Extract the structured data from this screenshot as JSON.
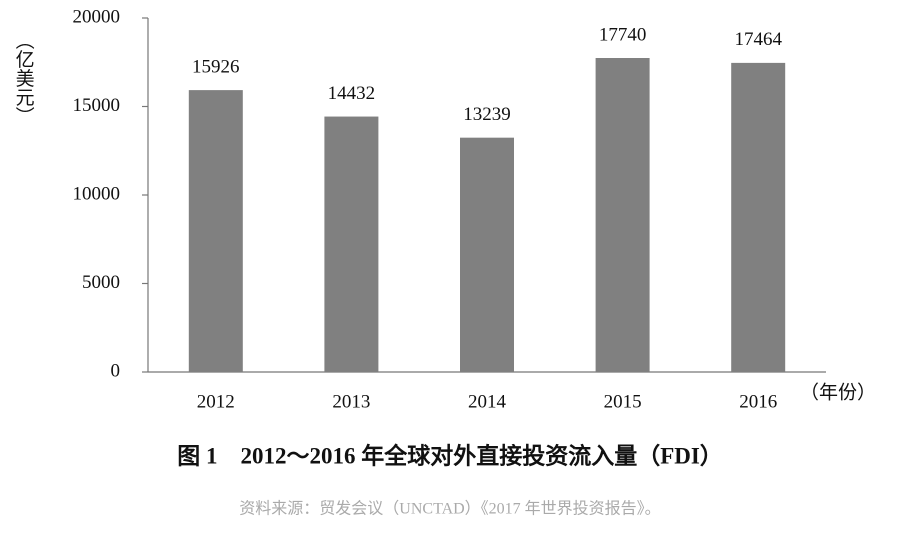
{
  "chart_data": {
    "type": "bar",
    "title": "图 1　2012～2016 年全球对外直接投资流入量（FDI）",
    "source": "资料来源：贸发会议（UNCTAD）《2017 年世界投资报告》。",
    "y_label": "（亿美元）",
    "x_label": "（年份）",
    "categories": [
      "2012",
      "2013",
      "2014",
      "2015",
      "2016"
    ],
    "values": [
      15926,
      14432,
      13239,
      17740,
      17464
    ],
    "color": "#808080",
    "ylim": [
      0,
      20000
    ],
    "yticks": [
      0,
      5000,
      10000,
      15000,
      20000
    ],
    "grid": false
  }
}
